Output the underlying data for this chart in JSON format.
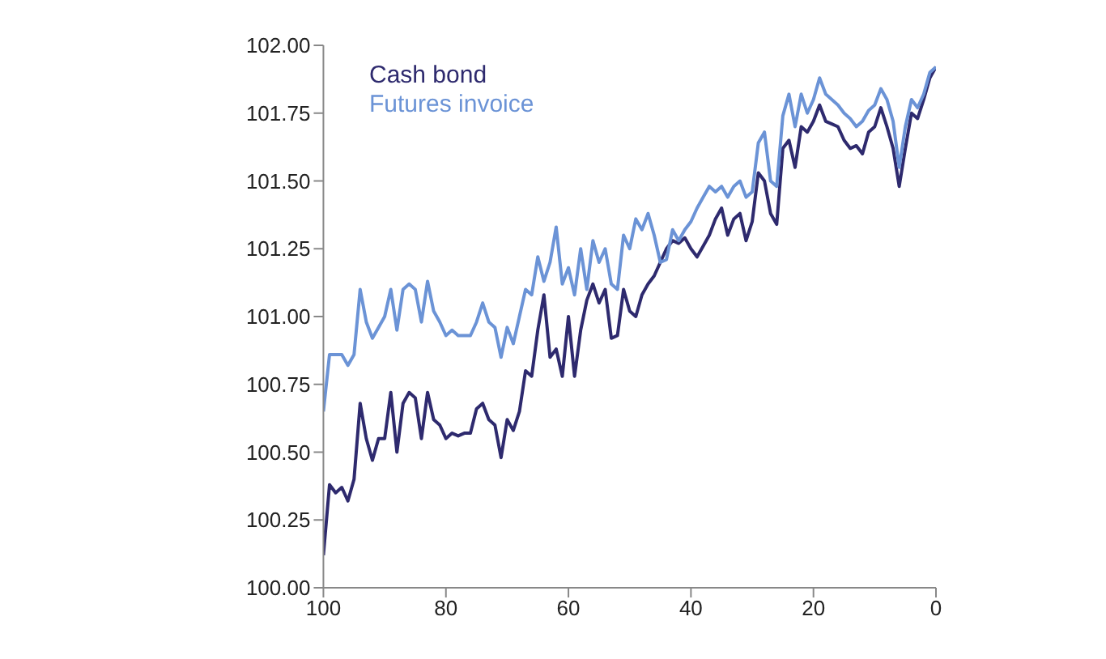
{
  "chart_data": {
    "type": "line",
    "x": [
      100,
      99,
      98,
      97,
      96,
      95,
      94,
      93,
      92,
      91,
      90,
      89,
      88,
      87,
      86,
      85,
      84,
      83,
      82,
      81,
      80,
      79,
      78,
      77,
      76,
      75,
      74,
      73,
      72,
      71,
      70,
      69,
      68,
      67,
      66,
      65,
      64,
      63,
      62,
      61,
      60,
      59,
      58,
      57,
      56,
      55,
      54,
      53,
      52,
      51,
      50,
      49,
      48,
      47,
      46,
      45,
      44,
      43,
      42,
      41,
      40,
      39,
      38,
      37,
      36,
      35,
      34,
      33,
      32,
      31,
      30,
      29,
      28,
      27,
      26,
      25,
      24,
      23,
      22,
      21,
      20,
      19,
      18,
      17,
      16,
      15,
      14,
      13,
      12,
      11,
      10,
      9,
      8,
      7,
      6,
      5,
      4,
      3,
      2,
      1,
      0
    ],
    "series": [
      {
        "name": "Cash bond",
        "color": "#2e2a6e",
        "values": [
          100.12,
          100.38,
          100.35,
          100.37,
          100.32,
          100.4,
          100.68,
          100.55,
          100.47,
          100.55,
          100.55,
          100.72,
          100.5,
          100.68,
          100.72,
          100.7,
          100.55,
          100.72,
          100.62,
          100.6,
          100.55,
          100.57,
          100.56,
          100.57,
          100.57,
          100.66,
          100.68,
          100.62,
          100.6,
          100.48,
          100.62,
          100.58,
          100.65,
          100.8,
          100.78,
          100.95,
          101.08,
          100.85,
          100.88,
          100.78,
          101.0,
          100.78,
          100.95,
          101.06,
          101.12,
          101.05,
          101.1,
          100.92,
          100.93,
          101.1,
          101.02,
          101.0,
          101.08,
          101.12,
          101.15,
          101.2,
          101.25,
          101.28,
          101.27,
          101.29,
          101.25,
          101.22,
          101.26,
          101.3,
          101.36,
          101.4,
          101.3,
          101.36,
          101.38,
          101.28,
          101.35,
          101.53,
          101.5,
          101.38,
          101.34,
          101.62,
          101.65,
          101.55,
          101.7,
          101.68,
          101.72,
          101.78,
          101.72,
          101.71,
          101.7,
          101.65,
          101.62,
          101.63,
          101.6,
          101.68,
          101.7,
          101.77,
          101.7,
          101.62,
          101.48,
          101.62,
          101.75,
          101.73,
          101.8,
          101.88,
          101.92
        ]
      },
      {
        "name": "Futures invoice",
        "color": "#6b93d6",
        "values": [
          100.65,
          100.86,
          100.86,
          100.86,
          100.82,
          100.86,
          101.1,
          100.98,
          100.92,
          100.96,
          101.0,
          101.1,
          100.95,
          101.1,
          101.12,
          101.1,
          100.98,
          101.13,
          101.02,
          100.98,
          100.93,
          100.95,
          100.93,
          100.93,
          100.93,
          100.98,
          101.05,
          100.98,
          100.96,
          100.85,
          100.96,
          100.9,
          101.0,
          101.1,
          101.08,
          101.22,
          101.13,
          101.2,
          101.33,
          101.12,
          101.18,
          101.08,
          101.25,
          101.1,
          101.28,
          101.2,
          101.25,
          101.12,
          101.1,
          101.3,
          101.25,
          101.36,
          101.32,
          101.38,
          101.3,
          101.2,
          101.21,
          101.32,
          101.28,
          101.32,
          101.35,
          101.4,
          101.44,
          101.48,
          101.46,
          101.48,
          101.44,
          101.48,
          101.5,
          101.44,
          101.46,
          101.64,
          101.68,
          101.5,
          101.48,
          101.74,
          101.82,
          101.7,
          101.82,
          101.75,
          101.8,
          101.88,
          101.82,
          101.8,
          101.78,
          101.75,
          101.73,
          101.7,
          101.72,
          101.76,
          101.78,
          101.84,
          101.8,
          101.72,
          101.55,
          101.7,
          101.8,
          101.77,
          101.82,
          101.9,
          101.92
        ]
      }
    ],
    "xlim": [
      100,
      0
    ],
    "xticks": [
      100,
      80,
      60,
      40,
      20,
      0
    ],
    "ylim": [
      100,
      102
    ],
    "yticks": [
      {
        "value": 100,
        "label": "100.00"
      },
      {
        "value": 100.25,
        "label": "100.25"
      },
      {
        "value": 100.5,
        "label": "100.50"
      },
      {
        "value": 100.75,
        "label": "100.75"
      },
      {
        "value": 101,
        "label": "101.00"
      },
      {
        "value": 101.25,
        "label": "101.25"
      },
      {
        "value": 101.5,
        "label": "101.50"
      },
      {
        "value": 101.75,
        "label": "101.75"
      },
      {
        "value": 102,
        "label": "102.00"
      }
    ],
    "legend": "top left",
    "grid": false,
    "marker": "none",
    "line_style": "solid"
  }
}
